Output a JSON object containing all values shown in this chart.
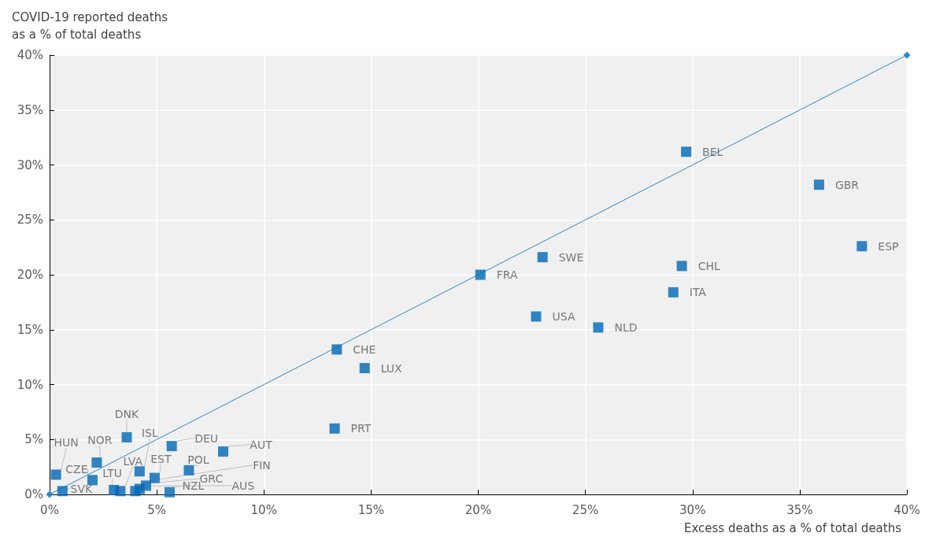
{
  "chart_data": {
    "type": "scatter",
    "xlabel": "Excess deaths as a % of total deaths",
    "ylabel": "COVID-19 reported deaths\nas a % of total deaths",
    "xlim": [
      0,
      40
    ],
    "ylim": [
      0,
      40
    ],
    "xticks": [
      {
        "value": 0,
        "label": "0%"
      },
      {
        "value": 5,
        "label": "5%"
      },
      {
        "value": 10,
        "label": "10%"
      },
      {
        "value": 15,
        "label": "15%"
      },
      {
        "value": 20,
        "label": "20%"
      },
      {
        "value": 25,
        "label": "25%"
      },
      {
        "value": 30,
        "label": "30%"
      },
      {
        "value": 35,
        "label": "35%"
      },
      {
        "value": 40,
        "label": "40%"
      }
    ],
    "yticks": [
      {
        "value": 0,
        "label": "0%"
      },
      {
        "value": 5,
        "label": "5%"
      },
      {
        "value": 10,
        "label": "10%"
      },
      {
        "value": 15,
        "label": "15%"
      },
      {
        "value": 20,
        "label": "20%"
      },
      {
        "value": 25,
        "label": "25%"
      },
      {
        "value": 30,
        "label": "30%"
      },
      {
        "value": 35,
        "label": "35%"
      },
      {
        "value": 40,
        "label": "40%"
      }
    ],
    "grid": true,
    "series": [
      {
        "type": "line",
        "color": "#2f86c9",
        "marker": "diamond",
        "x": [
          0,
          40
        ],
        "values": [
          0,
          40
        ]
      },
      {
        "color": "#0068b4",
        "marker": "square",
        "x": [
          29.7,
          35.9,
          37.9,
          23.0,
          29.5,
          20.1,
          29.1,
          22.7,
          25.6,
          13.4,
          14.7,
          13.3,
          3.6,
          0.3,
          2.2,
          2.0,
          0.6,
          3.0,
          3.3,
          4.2,
          4.9,
          5.7,
          8.1,
          6.5,
          4.5,
          4.2,
          5.6,
          4.0
        ],
        "values": [
          31.2,
          28.2,
          22.6,
          21.6,
          20.8,
          20.0,
          18.4,
          16.2,
          15.2,
          13.2,
          11.5,
          6.0,
          5.2,
          1.8,
          2.9,
          1.3,
          0.3,
          0.4,
          0.3,
          2.1,
          1.5,
          4.4,
          3.9,
          2.2,
          0.8,
          0.5,
          0.2,
          0.3
        ],
        "value_labels": [
          "BEL",
          "GBR",
          "ESP",
          "SWE",
          "CHL",
          "FRA",
          "ITA",
          "USA",
          "NLD",
          "CHE",
          "LUX",
          "PRT",
          "DNK",
          "HUN",
          "NOR",
          "CZE",
          "SVK",
          "LTU",
          "LVA",
          "ISL",
          "EST",
          "DEU",
          "AUT",
          "POL",
          "FIN",
          "GRC",
          "NZL",
          "AUS"
        ]
      }
    ]
  }
}
